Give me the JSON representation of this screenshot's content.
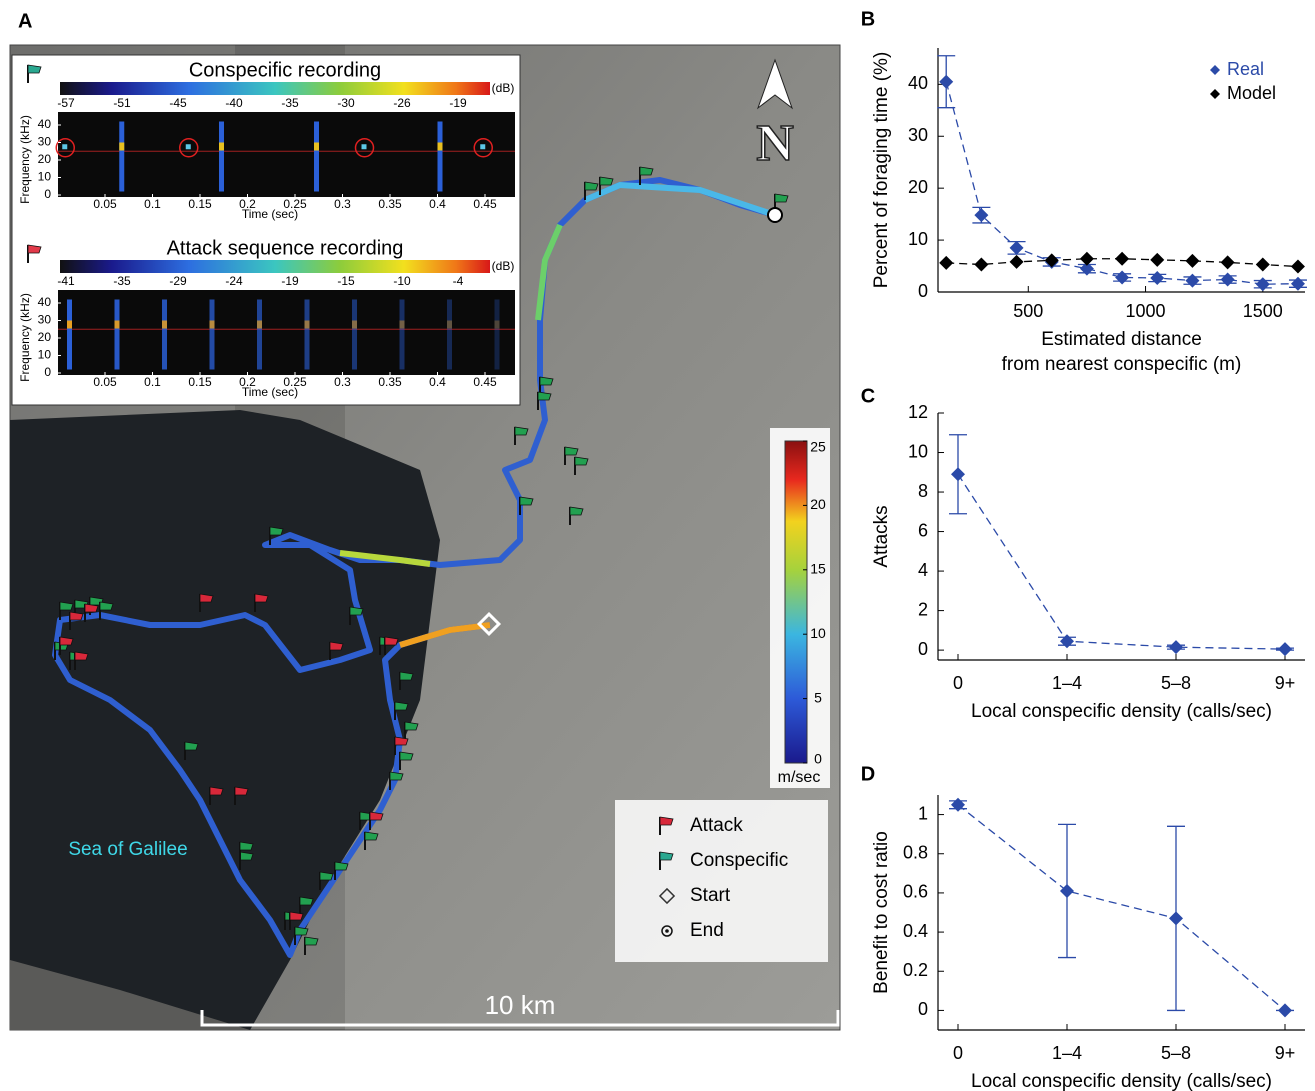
{
  "map": {
    "panel": "A",
    "spectrograms": [
      {
        "title": "Conspecific recording",
        "colorbar_labels": [
          -57,
          -51,
          -45,
          -40,
          -35,
          -30,
          -26,
          -19
        ],
        "unit": "(dB)",
        "ylabel": "Frequency (kHz)",
        "yticks": [
          0,
          10,
          20,
          30,
          40
        ],
        "xticks": [
          0.05,
          0.1,
          0.15,
          0.2,
          0.25,
          0.3,
          0.35,
          0.4,
          0.45
        ],
        "xlabel": "Time (sec)"
      },
      {
        "title": "Attack sequence recording",
        "colorbar_labels": [
          -41,
          -35,
          -29,
          -24,
          -19,
          -15,
          -10,
          -4
        ],
        "unit": "(dB)",
        "ylabel": "Frequency (kHz)",
        "yticks": [
          0,
          10,
          20,
          30,
          40
        ],
        "xticks": [
          0.05,
          0.1,
          0.15,
          0.2,
          0.25,
          0.3,
          0.35,
          0.4,
          0.45
        ],
        "xlabel": "Time (sec)"
      }
    ],
    "speed_colorbar": {
      "ticks": [
        0,
        5,
        10,
        15,
        20,
        25
      ],
      "unit": "m/sec"
    },
    "legend": [
      "Attack",
      "Conspecific",
      "Start",
      "End"
    ],
    "lake_label": "Sea of Galilee",
    "scale_label": "10 km",
    "north": "N"
  },
  "chart_data": [
    {
      "type": "line",
      "panel": "B",
      "ylabel": "Percent of foraging time (%)",
      "xlabel": [
        "Estimated distance",
        "from nearest conspecific (m)"
      ],
      "x": [
        150,
        300,
        450,
        600,
        750,
        900,
        1050,
        1200,
        1350,
        1500,
        1650
      ],
      "xlim": [
        115,
        1680
      ],
      "xticks": [
        500,
        1000,
        1500
      ],
      "ylim": [
        0,
        47
      ],
      "yticks": [
        0,
        10,
        20,
        30,
        40
      ],
      "legend": "upper right",
      "series": [
        {
          "name": "Real",
          "color": "#2b4aa8",
          "dashed": true,
          "values": [
            40.5,
            14.8,
            8.5,
            5.8,
            4.5,
            2.8,
            2.7,
            2.2,
            2.4,
            1.5,
            1.6
          ],
          "errors": [
            5,
            1.5,
            1.2,
            0.8,
            0.8,
            0.7,
            0.7,
            0.7,
            0.7,
            0.7,
            0.7
          ]
        },
        {
          "name": "Model",
          "color": "#000000",
          "dashed": true,
          "values": [
            5.6,
            5.3,
            5.8,
            6.1,
            6.4,
            6.4,
            6.2,
            6.0,
            5.7,
            5.3,
            4.9
          ]
        }
      ]
    },
    {
      "type": "line",
      "panel": "C",
      "ylabel": "Attacks",
      "xlabel": [
        "Local conspecific density (calls/sec)"
      ],
      "categories": [
        "0",
        "1–4",
        "5–8",
        "9+"
      ],
      "ylim": [
        -0.5,
        12
      ],
      "yticks": [
        0,
        2,
        4,
        6,
        8,
        10,
        12
      ],
      "series": [
        {
          "color": "#2b4aa8",
          "dashed": true,
          "values": [
            8.9,
            0.45,
            0.15,
            0.05
          ],
          "errors": [
            2,
            0.2,
            0.1,
            0.05
          ]
        }
      ]
    },
    {
      "type": "line",
      "panel": "D",
      "ylabel": "Benefit to cost ratio",
      "xlabel": [
        "Local conspecific density (calls/sec)"
      ],
      "categories": [
        "0",
        "1–4",
        "5–8",
        "9+"
      ],
      "ylim": [
        -0.1,
        1.1
      ],
      "yticks": [
        0,
        0.2,
        0.4,
        0.6,
        0.8,
        1
      ],
      "series": [
        {
          "color": "#2b4aa8",
          "dashed": true,
          "values": [
            1.05,
            0.61,
            0.47,
            0.0
          ],
          "errors": [
            0.02,
            0.34,
            0.47,
            0
          ]
        }
      ]
    }
  ]
}
